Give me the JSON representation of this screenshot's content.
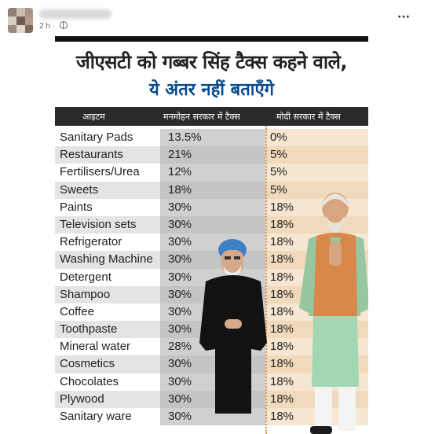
{
  "post": {
    "timestamp": "2 h",
    "more_label": "···"
  },
  "image": {
    "headline": "जीएसटी को गब्बर सिंह टैक्स कहने वाले,",
    "subline": "ये अंतर नहीं बताएँगे",
    "columns": [
      "आइटम",
      "मनमोहन सरकार में टैक्स",
      "मोदी सरकार में टैक्स"
    ],
    "rows": [
      {
        "item": "Sanitary Pads",
        "manmohan": "13.5%",
        "modi": "0%"
      },
      {
        "item": "Restaurants",
        "manmohan": "21%",
        "modi": "5%"
      },
      {
        "item": "Fertilisers/Urea",
        "manmohan": "12%",
        "modi": "5%"
      },
      {
        "item": "Sweets",
        "manmohan": "18%",
        "modi": "5%"
      },
      {
        "item": "Paints",
        "manmohan": "30%",
        "modi": "18%"
      },
      {
        "item": "Television sets",
        "manmohan": "30%",
        "modi": "18%"
      },
      {
        "item": "Refrigerator",
        "manmohan": "30%",
        "modi": "18%"
      },
      {
        "item": "Washing Machine",
        "manmohan": "30%",
        "modi": "18%"
      },
      {
        "item": "Detergent",
        "manmohan": "30%",
        "modi": "18%"
      },
      {
        "item": "Shampoo",
        "manmohan": "30%",
        "modi": "18%"
      },
      {
        "item": "Coffee",
        "manmohan": "30%",
        "modi": "18%"
      },
      {
        "item": "Toothpaste",
        "manmohan": "30%",
        "modi": "18%"
      },
      {
        "item": "Mineral water",
        "manmohan": "28%",
        "modi": "18%"
      },
      {
        "item": "Cosmetics",
        "manmohan": "30%",
        "modi": "18%"
      },
      {
        "item": "Chocolates",
        "manmohan": "30%",
        "modi": "18%"
      },
      {
        "item": "Plywood",
        "manmohan": "30%",
        "modi": "18%"
      },
      {
        "item": "Sanitary ware",
        "manmohan": "30%",
        "modi": "18%"
      }
    ]
  },
  "colors": {
    "headline_accent": "#0a4a8c",
    "header_bg": "#2b2b2b",
    "manmohan_col": "#d0d0d0",
    "modi_col": "#f7e6d1"
  },
  "icons": [
    "globe-icon",
    "more-options-icon"
  ]
}
